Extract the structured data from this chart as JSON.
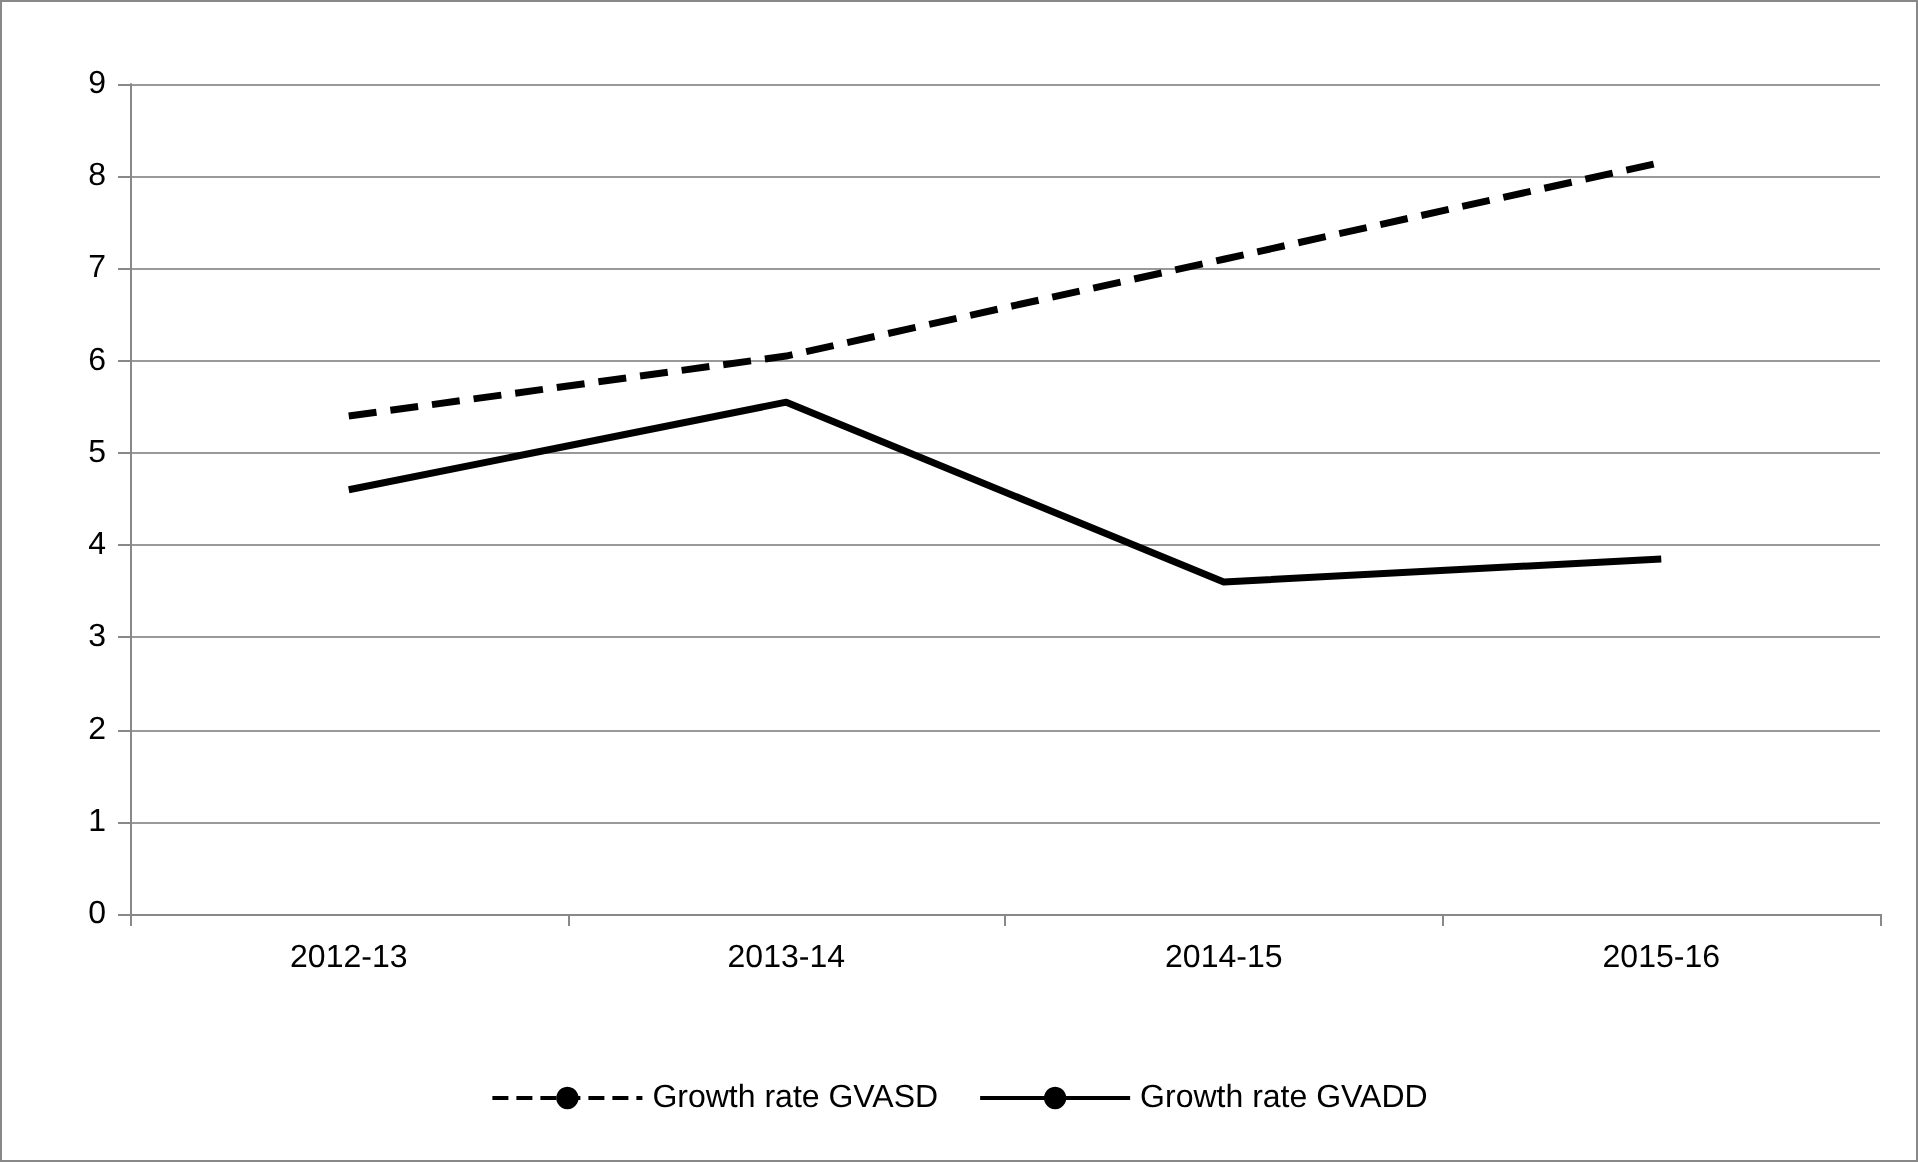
{
  "chart_data": {
    "type": "line",
    "categories": [
      "2012-13",
      "2013-14",
      "2014-15",
      "2015-16"
    ],
    "series": [
      {
        "name": "Growth rate GVASD",
        "color": "#000000",
        "line_style": "dashed",
        "values": [
          5.4,
          6.05,
          7.1,
          8.15
        ]
      },
      {
        "name": "Growth rate GVADD",
        "color": "#000000",
        "line_style": "solid",
        "values": [
          4.6,
          5.55,
          3.6,
          3.85
        ]
      }
    ],
    "ylim": [
      0,
      9
    ],
    "yticks": [
      0,
      1,
      2,
      3,
      4,
      5,
      6,
      7,
      8,
      9
    ],
    "grid": "y",
    "legend": "bottom",
    "marker": "none"
  }
}
